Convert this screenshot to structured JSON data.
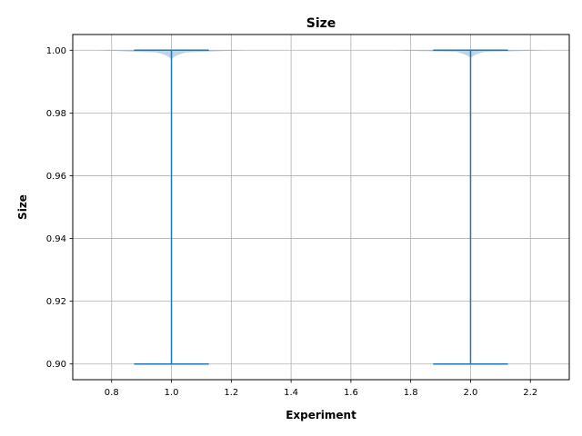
{
  "chart_data": {
    "type": "violin",
    "title": "Size",
    "xlabel": "Experiment",
    "ylabel": "Size",
    "xlim": [
      0.67,
      2.33
    ],
    "ylim": [
      0.895,
      1.005
    ],
    "xticks": [
      0.8,
      1.0,
      1.2,
      1.4,
      1.6,
      1.8,
      2.0,
      2.2
    ],
    "xtick_labels": [
      "0.8",
      "1.0",
      "1.2",
      "1.4",
      "1.6",
      "1.8",
      "2.0",
      "2.2"
    ],
    "yticks": [
      0.9,
      0.92,
      0.94,
      0.96,
      0.98,
      1.0
    ],
    "ytick_labels": [
      "0.90",
      "0.92",
      "0.94",
      "0.96",
      "0.98",
      "1.00"
    ],
    "grid": true,
    "colors": {
      "violin_fill": "#1f77b4",
      "lines": "#1f77b4",
      "grid": "#b0b0b0"
    },
    "violins": [
      {
        "position": 1.0,
        "min": 0.9,
        "max": 1.0,
        "body_halfwidth_at_max": 0.25,
        "body_bottom": 0.997,
        "bulk_level": 0.9993
      },
      {
        "position": 2.0,
        "min": 0.9,
        "max": 1.0,
        "body_halfwidth_at_max": 0.25,
        "body_bottom": 0.9975,
        "bulk_level": 0.9995
      }
    ]
  }
}
